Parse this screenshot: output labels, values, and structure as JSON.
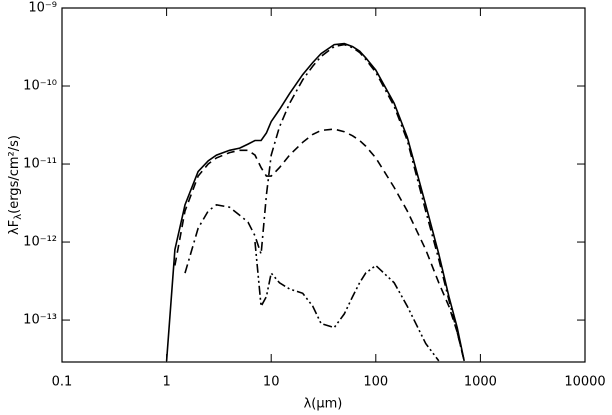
{
  "chart_data": {
    "type": "line",
    "log_x": true,
    "log_y": true,
    "xlabel": "λ(μm)",
    "ylabel": {
      "main": "λF",
      "sub": "λ",
      "rest": "(ergs/cm²/s)"
    },
    "x": [
      1,
      1.2,
      1.5,
      2,
      2.5,
      3,
      4,
      5,
      6,
      7,
      8,
      9,
      10,
      12,
      15,
      20,
      25,
      30,
      40,
      50,
      60,
      70,
      80,
      100,
      150,
      200,
      300,
      400,
      500,
      600,
      700
    ],
    "series": [
      {
        "dash": "solid",
        "color": "#000000",
        "values": [
          3e-14,
          8e-13,
          3e-12,
          8e-12,
          1.1e-11,
          1.3e-11,
          1.5e-11,
          1.6e-11,
          1.8e-11,
          2e-11,
          2e-11,
          2.5e-11,
          3.5e-11,
          5e-11,
          8e-11,
          1.4e-10,
          2e-10,
          2.6e-10,
          3.4e-10,
          3.5e-10,
          3.2e-10,
          2.8e-10,
          2.3e-10,
          1.6e-10,
          6e-11,
          2.2e-11,
          3e-12,
          7e-13,
          2e-13,
          8e-14,
          3e-14
        ]
      },
      {
        "dash": "dashed",
        "color": "#000000",
        "values": [
          null,
          5e-13,
          2.5e-12,
          7e-12,
          1e-11,
          1.2e-11,
          1.4e-11,
          1.5e-11,
          1.5e-11,
          1.3e-11,
          9e-12,
          7e-12,
          7e-12,
          9e-12,
          1.3e-11,
          1.9e-11,
          2.4e-11,
          2.7e-11,
          2.8e-11,
          2.6e-11,
          2.3e-11,
          2e-11,
          1.7e-11,
          1.2e-11,
          5e-12,
          2.5e-12,
          8e-13,
          3e-13,
          1.5e-13,
          7e-14,
          3e-14
        ]
      },
      {
        "dash": "dash-dot",
        "color": "#000000",
        "values": [
          null,
          null,
          4e-13,
          1.5e-12,
          2.5e-12,
          3e-12,
          2.8e-12,
          2.2e-12,
          1.8e-12,
          1.2e-12,
          7e-13,
          4e-12,
          1.3e-11,
          3e-11,
          6e-11,
          1.2e-10,
          1.8e-10,
          2.4e-10,
          3.2e-10,
          3.4e-10,
          3.1e-10,
          2.7e-10,
          2.2e-10,
          1.5e-10,
          5.5e-11,
          2e-11,
          2.5e-12,
          6e-13,
          1.8e-13,
          7e-14,
          3e-14
        ]
      },
      {
        "dash": "dash-dot-dot",
        "color": "#000000",
        "values": [
          null,
          null,
          null,
          null,
          null,
          null,
          null,
          null,
          null,
          1e-12,
          1.5e-13,
          2e-13,
          4e-13,
          3e-13,
          2.5e-13,
          2.2e-13,
          1.5e-13,
          9e-14,
          8e-14,
          1.2e-13,
          2e-13,
          3e-13,
          4e-13,
          5e-13,
          3e-13,
          1.5e-13,
          5e-14,
          3e-14,
          null,
          null,
          null
        ]
      }
    ],
    "xlim": [
      0.1,
      10000
    ],
    "ylim": [
      2.9e-14,
      1e-09
    ],
    "xticks": [
      0.1,
      1,
      10,
      100,
      1000,
      10000
    ],
    "yticks": [
      {
        "value": 1e-13,
        "label": "10⁻¹³"
      },
      {
        "value": 1e-12,
        "label": "10⁻¹²"
      },
      {
        "value": 1e-11,
        "label": "10⁻¹¹"
      },
      {
        "value": 1e-10,
        "label": "10⁻¹⁰"
      },
      {
        "value": 1e-09,
        "label": "10⁻⁹"
      }
    ]
  }
}
